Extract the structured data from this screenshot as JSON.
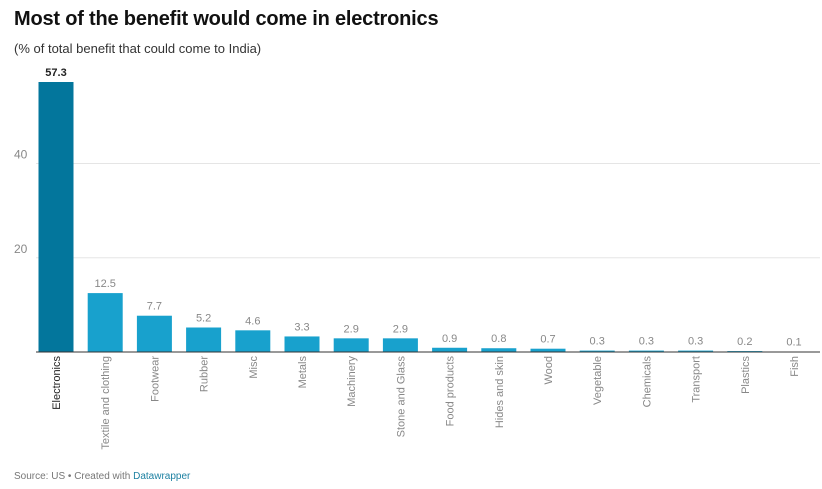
{
  "header": {
    "title": "Most of the benefit would come in electronics",
    "subtitle": "(% of total benefit that could come to India)"
  },
  "footer": {
    "source": "Source: US • Created with ",
    "tool": "Datawrapper"
  },
  "colors": {
    "highlight": "#03769c",
    "bar": "#18a1cd",
    "grid": "#e5e5e5",
    "axis": "#333333",
    "tick_text": "#888888"
  },
  "chart_data": {
    "type": "bar",
    "title": "Most of the benefit would come in electronics",
    "subtitle": "(% of total benefit that could come to India)",
    "categories": [
      "Electronics",
      "Textile and clothing",
      "Footwear",
      "Rubber",
      "Misc",
      "Metals",
      "Machinery",
      "Stone and Glass",
      "Food products",
      "Hides and skin",
      "Wood",
      "Vegetable",
      "Chemicals",
      "Transport",
      "Plastics",
      "Fish"
    ],
    "values": [
      57.3,
      12.5,
      7.7,
      5.2,
      4.6,
      3.3,
      2.9,
      2.9,
      0.9,
      0.8,
      0.7,
      0.3,
      0.3,
      0.3,
      0.2,
      0.1
    ],
    "labels": [
      "57.3",
      "12.5",
      "7.7",
      "5.2",
      "4.6",
      "3.3",
      "2.9",
      "2.9",
      "0.9",
      "0.8",
      "0.7",
      "0.3",
      "0.3",
      "0.3",
      "0.2",
      "0.1"
    ],
    "highlight_index": 0,
    "y_ticks": [
      20,
      40
    ],
    "ylim": [
      0,
      57.3
    ],
    "grid": true,
    "legend": "none"
  }
}
